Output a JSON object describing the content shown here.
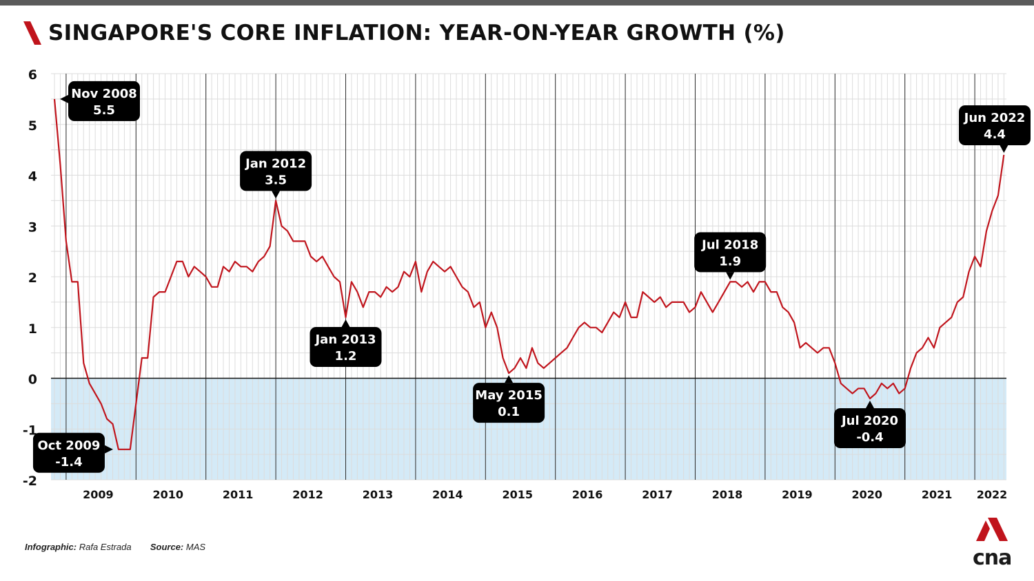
{
  "title": "SINGAPORE'S CORE INFLATION: YEAR-ON-YEAR GROWTH (%)",
  "footer": {
    "infographic_label": "Infographic:",
    "infographic_name": "Rafa Estrada",
    "source_label": "Source:",
    "source_name": "MAS"
  },
  "logo_text": "cna",
  "colors": {
    "line": "#c0141c",
    "negative_fill": "#d4eaf7",
    "accent": "#c0141c",
    "callout": "#000000"
  },
  "chart_data": {
    "type": "line",
    "title": "SINGAPORE'S CORE INFLATION: YEAR-ON-YEAR GROWTH (%)",
    "xlabel": "",
    "ylabel": "",
    "ylim": [
      -2,
      6
    ],
    "y_ticks": [
      "6",
      "5",
      "4",
      "3",
      "2",
      "1",
      "0",
      "-1",
      "-2"
    ],
    "x_tick_labels": [
      "2009",
      "2010",
      "2011",
      "2012",
      "2013",
      "2014",
      "2015",
      "2016",
      "2017",
      "2018",
      "2019",
      "2020",
      "2021",
      "2022"
    ],
    "x_start": "Nov 2008",
    "x_end": "Jun 2022",
    "grid": true,
    "negative_region_shaded": true,
    "series": [
      {
        "values": [
          5.5,
          4.2,
          2.7,
          1.9,
          1.9,
          0.3,
          -0.1,
          -0.3,
          -0.5,
          -0.8,
          -0.9,
          -1.4,
          -1.4,
          -1.4,
          -0.5,
          0.4,
          0.4,
          1.6,
          1.7,
          1.7,
          2.0,
          2.3,
          2.3,
          2.0,
          2.2,
          2.1,
          2.0,
          1.8,
          1.8,
          2.2,
          2.1,
          2.3,
          2.2,
          2.2,
          2.1,
          2.3,
          2.4,
          2.6,
          3.5,
          3.0,
          2.9,
          2.7,
          2.7,
          2.7,
          2.4,
          2.3,
          2.4,
          2.2,
          2.0,
          1.9,
          1.2,
          1.9,
          1.7,
          1.4,
          1.7,
          1.7,
          1.6,
          1.8,
          1.7,
          1.8,
          2.1,
          2.0,
          2.3,
          1.7,
          2.1,
          2.3,
          2.2,
          2.1,
          2.2,
          2.0,
          1.8,
          1.7,
          1.4,
          1.5,
          1.0,
          1.3,
          1.0,
          0.4,
          0.1,
          0.2,
          0.4,
          0.2,
          0.6,
          0.3,
          0.2,
          0.3,
          0.4,
          0.5,
          0.6,
          0.8,
          1.0,
          1.1,
          1.0,
          1.0,
          0.9,
          1.1,
          1.3,
          1.2,
          1.5,
          1.2,
          1.2,
          1.7,
          1.6,
          1.5,
          1.6,
          1.4,
          1.5,
          1.5,
          1.5,
          1.3,
          1.4,
          1.7,
          1.5,
          1.3,
          1.5,
          1.7,
          1.9,
          1.9,
          1.8,
          1.9,
          1.7,
          1.9,
          1.9,
          1.7,
          1.7,
          1.4,
          1.3,
          1.1,
          0.6,
          0.7,
          0.6,
          0.5,
          0.6,
          0.6,
          0.3,
          -0.1,
          -0.2,
          -0.3,
          -0.2,
          -0.2,
          -0.4,
          -0.3,
          -0.1,
          -0.2,
          -0.1,
          -0.3,
          -0.2,
          0.2,
          0.5,
          0.6,
          0.8,
          0.6,
          1.0,
          1.1,
          1.2,
          1.5,
          1.6,
          2.1,
          2.4,
          2.2,
          2.9,
          3.3,
          3.6,
          4.4
        ]
      }
    ],
    "annotations": [
      {
        "label": "Nov 2008",
        "value": "5.5",
        "index": 0,
        "placement": "right"
      },
      {
        "label": "Oct 2009",
        "value": "-1.4",
        "index": 11,
        "placement": "left"
      },
      {
        "label": "Jan 2012",
        "value": "3.5",
        "index": 38,
        "placement": "above"
      },
      {
        "label": "Jan 2013",
        "value": "1.2",
        "index": 50,
        "placement": "below"
      },
      {
        "label": "May 2015",
        "value": "0.1",
        "index": 78,
        "placement": "below"
      },
      {
        "label": "Jul 2018",
        "value": "1.9",
        "index": 116,
        "placement": "above"
      },
      {
        "label": "Jul 2020",
        "value": "-0.4",
        "index": 140,
        "placement": "below"
      },
      {
        "label": "Jun 2022",
        "value": "4.4",
        "index": 163,
        "placement": "above"
      }
    ]
  }
}
